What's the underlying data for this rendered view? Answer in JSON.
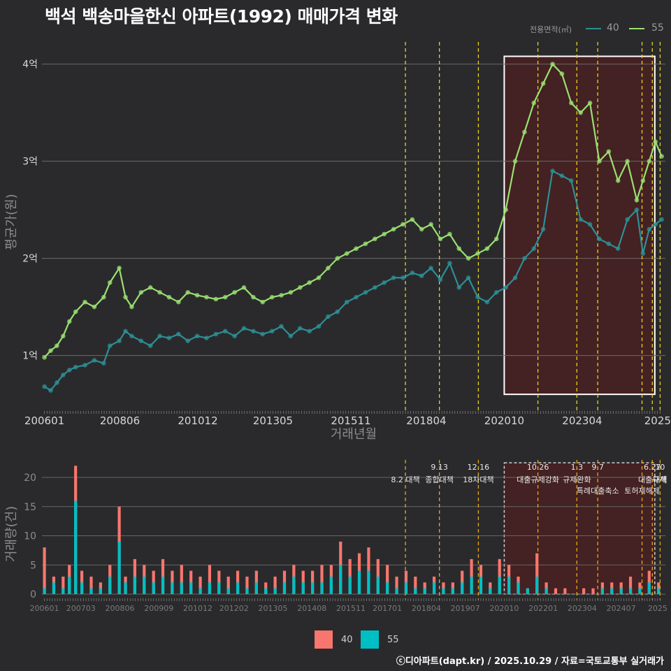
{
  "title": "백석 백송마을한신 아파트(1992) 매매가격 변화",
  "legend": {
    "title": "전용면적(㎡)",
    "items": [
      {
        "label": "40",
        "line_color": "#2e8f96",
        "fill_color": "#f8766d"
      },
      {
        "label": "55",
        "line_color": "#9ae071",
        "fill_color": "#00bfc4"
      }
    ]
  },
  "credit": "ⓒ디아파트(dapt.kr) / 2025.10.29 / 자료=국토교통부 실거래가",
  "chart_data": [
    {
      "type": "line",
      "ylabel": "평균가(원)",
      "xlabel": "거래년월",
      "ylim": [
        0.45,
        4.3
      ],
      "y_ticks": [
        {
          "v": 1,
          "label": "1억"
        },
        {
          "v": 2,
          "label": "2억"
        },
        {
          "v": 3,
          "label": "3억"
        },
        {
          "v": 4,
          "label": "4억"
        }
      ],
      "x_tick_labels": [
        "200601",
        "200806",
        "201012",
        "201305",
        "201511",
        "201804",
        "202010",
        "202304",
        "2025"
      ],
      "x_tick_positions": [
        2006.0,
        2008.42,
        2010.92,
        2013.33,
        2015.83,
        2018.25,
        2020.75,
        2023.25,
        2025.67
      ],
      "x_range": [
        2005.92,
        2025.92
      ],
      "highlight": {
        "from": 2020.75,
        "to": 2025.58,
        "y_from": 0.6,
        "y_to": 4.08
      },
      "policy_lines": [
        2017.58,
        2018.67,
        2019.92,
        2021.83,
        2023.08,
        2023.75,
        2025.17,
        2025.5,
        2025.75
      ],
      "series": [
        {
          "name": "40",
          "color": "#2e8f96",
          "x": [
            2006.0,
            2006.2,
            2006.4,
            2006.6,
            2006.8,
            2007.0,
            2007.3,
            2007.6,
            2007.9,
            2008.1,
            2008.4,
            2008.6,
            2008.8,
            2009.1,
            2009.4,
            2009.7,
            2010.0,
            2010.3,
            2010.6,
            2010.9,
            2011.2,
            2011.5,
            2011.8,
            2012.1,
            2012.4,
            2012.7,
            2013.0,
            2013.3,
            2013.6,
            2013.9,
            2014.2,
            2014.5,
            2014.8,
            2015.1,
            2015.4,
            2015.7,
            2016.0,
            2016.3,
            2016.6,
            2016.9,
            2017.2,
            2017.5,
            2017.8,
            2018.1,
            2018.4,
            2018.7,
            2019.0,
            2019.3,
            2019.6,
            2019.9,
            2020.2,
            2020.5,
            2020.8,
            2021.1,
            2021.4,
            2021.7,
            2022.0,
            2022.3,
            2022.6,
            2022.9,
            2023.2,
            2023.5,
            2023.8,
            2024.1,
            2024.4,
            2024.7,
            2025.0,
            2025.2,
            2025.4,
            2025.6,
            2025.8
          ],
          "y": [
            0.68,
            0.64,
            0.72,
            0.8,
            0.85,
            0.88,
            0.9,
            0.95,
            0.92,
            1.1,
            1.15,
            1.25,
            1.2,
            1.15,
            1.1,
            1.2,
            1.18,
            1.22,
            1.15,
            1.2,
            1.18,
            1.22,
            1.25,
            1.2,
            1.28,
            1.25,
            1.22,
            1.25,
            1.3,
            1.2,
            1.28,
            1.25,
            1.3,
            1.4,
            1.45,
            1.55,
            1.6,
            1.65,
            1.7,
            1.75,
            1.8,
            1.8,
            1.85,
            1.82,
            1.9,
            1.78,
            1.95,
            1.7,
            1.8,
            1.6,
            1.55,
            1.65,
            1.7,
            1.8,
            2.0,
            2.1,
            2.3,
            2.9,
            2.85,
            2.8,
            2.4,
            2.35,
            2.2,
            2.15,
            2.1,
            2.4,
            2.5,
            2.05,
            2.3,
            2.35,
            2.4
          ]
        },
        {
          "name": "55",
          "color": "#9ae071",
          "x": [
            2006.0,
            2006.2,
            2006.4,
            2006.6,
            2006.8,
            2007.0,
            2007.3,
            2007.6,
            2007.9,
            2008.1,
            2008.4,
            2008.6,
            2008.8,
            2009.1,
            2009.4,
            2009.7,
            2010.0,
            2010.3,
            2010.6,
            2010.9,
            2011.2,
            2011.5,
            2011.8,
            2012.1,
            2012.4,
            2012.7,
            2013.0,
            2013.3,
            2013.6,
            2013.9,
            2014.2,
            2014.5,
            2014.8,
            2015.1,
            2015.4,
            2015.7,
            2016.0,
            2016.3,
            2016.6,
            2016.9,
            2017.2,
            2017.5,
            2017.8,
            2018.1,
            2018.4,
            2018.7,
            2019.0,
            2019.3,
            2019.6,
            2019.9,
            2020.2,
            2020.5,
            2020.8,
            2021.1,
            2021.4,
            2021.7,
            2022.0,
            2022.3,
            2022.6,
            2022.9,
            2023.2,
            2023.5,
            2023.8,
            2024.1,
            2024.4,
            2024.7,
            2025.0,
            2025.2,
            2025.4,
            2025.6,
            2025.8
          ],
          "y": [
            0.98,
            1.05,
            1.1,
            1.2,
            1.35,
            1.45,
            1.55,
            1.5,
            1.6,
            1.75,
            1.9,
            1.6,
            1.5,
            1.65,
            1.7,
            1.65,
            1.6,
            1.55,
            1.65,
            1.62,
            1.6,
            1.58,
            1.6,
            1.65,
            1.7,
            1.6,
            1.55,
            1.6,
            1.62,
            1.65,
            1.7,
            1.75,
            1.8,
            1.9,
            2.0,
            2.05,
            2.1,
            2.15,
            2.2,
            2.25,
            2.3,
            2.35,
            2.4,
            2.3,
            2.35,
            2.2,
            2.25,
            2.1,
            2.0,
            2.05,
            2.1,
            2.2,
            2.5,
            3.0,
            3.3,
            3.6,
            3.8,
            4.0,
            3.9,
            3.6,
            3.5,
            3.6,
            3.0,
            3.1,
            2.8,
            3.0,
            2.6,
            2.8,
            3.0,
            3.2,
            3.05
          ]
        }
      ]
    },
    {
      "type": "bar",
      "ylabel": "거래량(건)",
      "ylim": [
        0,
        23
      ],
      "y_ticks": [
        0,
        5,
        10,
        15,
        20
      ],
      "x_tick_labels": [
        "200601",
        "200703",
        "200806",
        "200909",
        "201012",
        "201202",
        "201305",
        "201408",
        "201511",
        "201701",
        "201804",
        "201907",
        "202010",
        "202201",
        "202304",
        "202407",
        "2025"
      ],
      "x_tick_positions": [
        2006.0,
        2007.17,
        2008.42,
        2009.67,
        2010.92,
        2012.08,
        2013.33,
        2014.58,
        2015.83,
        2017.0,
        2018.25,
        2019.5,
        2020.75,
        2022.0,
        2023.25,
        2024.5,
        2025.67
      ],
      "x_range": [
        2005.92,
        2025.92
      ],
      "highlight": {
        "from": 2020.75,
        "to": 2025.58
      },
      "series": [
        {
          "name": "40",
          "color": "#f8766d",
          "x": [
            2006.0,
            2006.3,
            2006.6,
            2006.8,
            2007.0,
            2007.2,
            2007.5,
            2007.8,
            2008.1,
            2008.4,
            2008.6,
            2008.9,
            2009.2,
            2009.5,
            2009.8,
            2010.1,
            2010.4,
            2010.7,
            2011.0,
            2011.3,
            2011.6,
            2011.9,
            2012.2,
            2012.5,
            2012.8,
            2013.1,
            2013.4,
            2013.7,
            2014.0,
            2014.3,
            2014.6,
            2014.9,
            2015.2,
            2015.5,
            2015.8,
            2016.1,
            2016.4,
            2016.7,
            2017.0,
            2017.3,
            2017.6,
            2017.9,
            2018.2,
            2018.5,
            2018.8,
            2019.1,
            2019.4,
            2019.7,
            2020.0,
            2020.3,
            2020.6,
            2020.9,
            2021.2,
            2021.5,
            2021.8,
            2022.1,
            2022.4,
            2022.7,
            2023.0,
            2023.3,
            2023.6,
            2023.9,
            2024.2,
            2024.5,
            2024.8,
            2025.1,
            2025.4,
            2025.7
          ],
          "y": [
            8,
            3,
            3,
            5,
            22,
            4,
            3,
            2,
            5,
            15,
            3,
            6,
            5,
            4,
            6,
            4,
            5,
            4,
            3,
            5,
            4,
            3,
            4,
            3,
            4,
            2,
            3,
            4,
            5,
            4,
            4,
            5,
            5,
            9,
            6,
            7,
            8,
            6,
            5,
            3,
            4,
            3,
            2,
            3,
            2,
            2,
            4,
            6,
            5,
            2,
            6,
            5,
            3,
            1,
            7,
            2,
            1,
            1,
            0,
            1,
            1,
            2,
            2,
            2,
            3,
            2,
            4,
            2
          ]
        },
        {
          "name": "55",
          "color": "#00bfc4",
          "x": [
            2006.0,
            2006.3,
            2006.6,
            2006.8,
            2007.0,
            2007.2,
            2007.5,
            2007.8,
            2008.1,
            2008.4,
            2008.6,
            2008.9,
            2009.2,
            2009.5,
            2009.8,
            2010.1,
            2010.4,
            2010.7,
            2011.0,
            2011.3,
            2011.6,
            2011.9,
            2012.2,
            2012.5,
            2012.8,
            2013.1,
            2013.4,
            2013.7,
            2014.0,
            2014.3,
            2014.6,
            2014.9,
            2015.2,
            2015.5,
            2015.8,
            2016.1,
            2016.4,
            2016.7,
            2017.0,
            2017.3,
            2017.6,
            2017.9,
            2018.2,
            2018.5,
            2018.8,
            2019.1,
            2019.4,
            2019.7,
            2020.0,
            2020.3,
            2020.6,
            2020.9,
            2021.2,
            2021.5,
            2021.8,
            2022.1,
            2022.4,
            2022.7,
            2023.0,
            2023.3,
            2023.6,
            2023.9,
            2024.2,
            2024.5,
            2024.8,
            2025.1,
            2025.4,
            2025.7
          ],
          "y": [
            1,
            2,
            1,
            3,
            16,
            2,
            1,
            1,
            3,
            9,
            2,
            3,
            3,
            2,
            3,
            2,
            2,
            2,
            1,
            2,
            2,
            1,
            2,
            1,
            2,
            1,
            1,
            2,
            3,
            2,
            2,
            2,
            3,
            5,
            3,
            4,
            4,
            3,
            2,
            1,
            2,
            1,
            1,
            2,
            1,
            1,
            2,
            3,
            3,
            1,
            3,
            3,
            2,
            1,
            3,
            1,
            0,
            0,
            0,
            0,
            0,
            1,
            1,
            1,
            1,
            1,
            2,
            1
          ]
        }
      ],
      "policies": [
        {
          "x": 2017.58,
          "date": "",
          "label": "8.2 대책"
        },
        {
          "x": 2018.67,
          "date": "9.13",
          "label": "종합대책"
        },
        {
          "x": 2019.92,
          "date": "12.16",
          "label": "18차대책"
        },
        {
          "x": 2021.83,
          "date": "10.26",
          "label": "대출규제강화"
        },
        {
          "x": 2023.08,
          "date": "1.3",
          "label": "규제완화"
        },
        {
          "x": 2023.75,
          "date": "9.7",
          "label": "특례대출축소"
        },
        {
          "x": 2025.17,
          "date": "",
          "label": "토허제해제"
        },
        {
          "x": 2025.5,
          "date": "6.27",
          "label": "대출규제"
        },
        {
          "x": 2025.75,
          "date": "10",
          "label": "대책"
        }
      ]
    }
  ]
}
